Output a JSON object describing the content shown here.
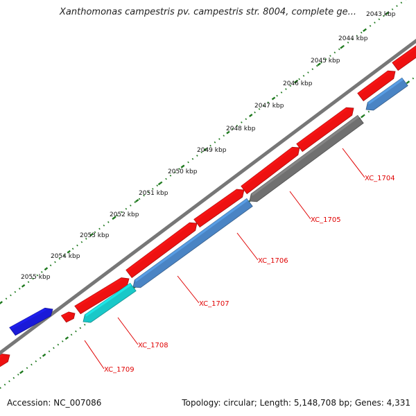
{
  "title": "Xanthomonas campestris pv. campestris str. 8004, complete ge...",
  "accession": "Accession: NC_007086",
  "summary": "Topology: circular; Length: 5,148,708 bp; Genes: 4,331",
  "scale_ticks": [
    {
      "label": "2043 kbp"
    },
    {
      "label": "2044 kbp"
    },
    {
      "label": "2045 kbp"
    },
    {
      "label": "2046 kbp"
    },
    {
      "label": "2047 kbp"
    },
    {
      "label": "2048 kbp"
    },
    {
      "label": "2049 kbp"
    },
    {
      "label": "2050 kbp"
    },
    {
      "label": "2051 kbp"
    },
    {
      "label": "2052 kbp"
    },
    {
      "label": "2053 kbp"
    },
    {
      "label": "2054 kbp"
    },
    {
      "label": "2055 kbp"
    }
  ],
  "gene_labels": [
    "XC_1704",
    "XC_1705",
    "XC_1706",
    "XC_1707",
    "XC_1708",
    "XC_1709"
  ],
  "colors": {
    "backbone": "#777777",
    "forward_red": "#ee1111",
    "reverse_steel": "#4a84c4",
    "reverse_gray": "#707070",
    "reverse_cyan": "#19c8c8",
    "blue_feature": "#1a1ad8",
    "tick_green": "#1f7a1f",
    "label_red": "#e00000"
  }
}
